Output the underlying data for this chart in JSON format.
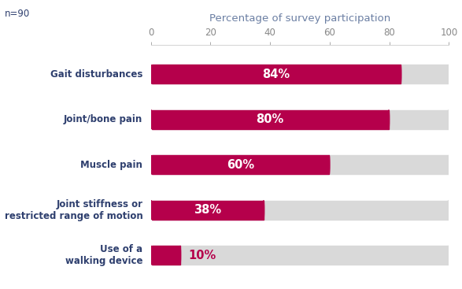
{
  "categories": [
    "Gait disturbances",
    "Joint/bone pain",
    "Muscle pain",
    "Joint stiffness or\nrestricted range of motion",
    "Use of a\nwalking device"
  ],
  "values": [
    84,
    80,
    60,
    38,
    10
  ],
  "labels": [
    "84%",
    "80%",
    "60%",
    "38%",
    "10%"
  ],
  "bar_color": "#b5004b",
  "bg_bar_color": "#d9d9d9",
  "title": "Percentage of survey participation",
  "note": "n=90",
  "xlim": [
    0,
    100
  ],
  "xticks": [
    0,
    20,
    40,
    60,
    80,
    100
  ],
  "bar_height": 0.42,
  "label_fontsize": 10.5,
  "tick_label_fontsize": 8.5,
  "title_fontsize": 9.5,
  "note_fontsize": 8.5,
  "label_color_inside": "#ffffff",
  "label_color_outside": "#b5004b",
  "category_color": "#2e3f6e",
  "title_color": "#6b7fa3"
}
